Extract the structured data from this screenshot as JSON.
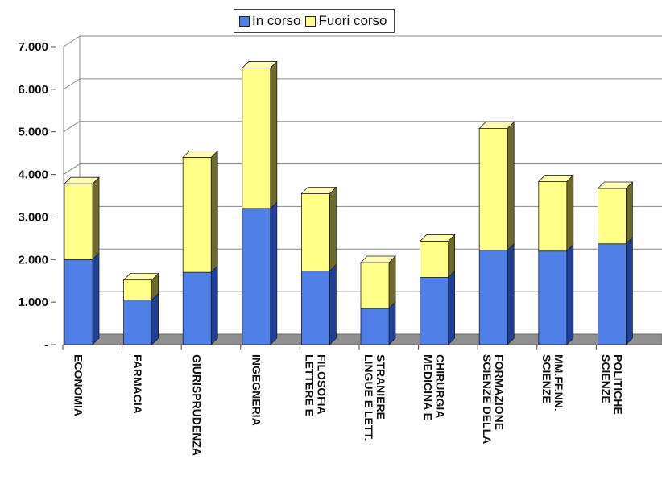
{
  "chart_data": {
    "type": "bar",
    "stacked": true,
    "three_d": true,
    "categories": [
      "ECONOMIA",
      "FARMACIA",
      "GIURISPRUDENZA",
      "INGEGNERIA",
      "LETTERE E FILOSOFIA",
      "LINGUE E LETT. STRANIERE",
      "MEDICINA E CHIRURGIA",
      "SCIENZE DELLA FORMAZIONE",
      "SCIENZE MM.FF.NN.",
      "SCIENZE POLITICHE"
    ],
    "category_label_lines": [
      [
        "ECONOMIA"
      ],
      [
        "FARMACIA"
      ],
      [
        "GIURISPRUDENZA"
      ],
      [
        "INGEGNERIA"
      ],
      [
        "LETTERE E",
        "FILOSOFIA"
      ],
      [
        "LINGUE E LETT.",
        "STRANIERE"
      ],
      [
        "MEDICINA E",
        "CHIRURGIA"
      ],
      [
        "SCIENZE DELLA",
        "FORMAZIONE"
      ],
      [
        "SCIENZE",
        "MM.FF.NN."
      ],
      [
        "SCIENZE",
        "POLITICHE"
      ]
    ],
    "series": [
      {
        "name": "In corso",
        "color": "#4f7fe6",
        "values": [
          2000,
          1050,
          1700,
          3200,
          1730,
          850,
          1580,
          2220,
          2200,
          2370
        ]
      },
      {
        "name": "Fuori corso",
        "color": "#ffff88",
        "values": [
          1780,
          470,
          2700,
          3300,
          1820,
          1080,
          850,
          2860,
          1630,
          1300
        ]
      }
    ],
    "y_ticks": [
      "-",
      "1.000",
      "2.000",
      "3.000",
      "4.000",
      "5.000",
      "6.000",
      "7.000"
    ],
    "ylim": [
      0,
      7000
    ],
    "grid": true,
    "legend_position": "top"
  }
}
